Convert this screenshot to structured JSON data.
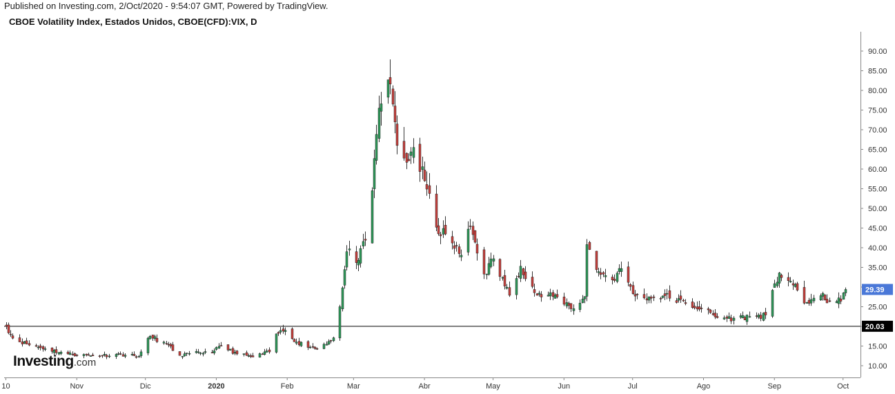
{
  "header": {
    "published": "Published on Investing.com, 2/Oct/2020 - 9:54:07 GMT, Powered by TradingView.",
    "symbol": "CBOE Volatility Index, Estados Unidos, CBOE(CFD):VIX, D"
  },
  "logo": {
    "main": "Investing",
    "suffix": ".com"
  },
  "colors": {
    "up": "#2e9a5a",
    "down": "#c8403c",
    "wick": "#333333",
    "last_label": "#4a78d8",
    "ref_label": "#000000"
  },
  "chart_data": {
    "type": "candlestick",
    "title": "CBOE Volatility Index, Estados Unidos, CBOE(CFD):VIX, D",
    "ylim": [
      8,
      95
    ],
    "y_ticks": [
      10,
      15,
      20,
      25,
      30,
      35,
      40,
      45,
      50,
      55,
      60,
      65,
      70,
      75,
      80,
      85,
      90
    ],
    "y_tick_labels": [
      "10.00",
      "15.00",
      "20.00",
      "25.00",
      "30.00",
      "35.00",
      "40.00",
      "45.00",
      "50.00",
      "55.00",
      "60.00",
      "65.00",
      "70.00",
      "75.00",
      "80.00",
      "85.00",
      "90.00"
    ],
    "x_start": "2019-10-01",
    "x_end": "2020-10-02",
    "x_ticks": [
      {
        "date": "2019-10-01",
        "label": "10",
        "bold": false
      },
      {
        "date": "2019-11-01",
        "label": "Nov",
        "bold": false
      },
      {
        "date": "2019-12-01",
        "label": "Dic",
        "bold": false
      },
      {
        "date": "2020-01-01",
        "label": "2020",
        "bold": true
      },
      {
        "date": "2020-02-01",
        "label": "Feb",
        "bold": false
      },
      {
        "date": "2020-03-01",
        "label": "Mar",
        "bold": false
      },
      {
        "date": "2020-04-01",
        "label": "Abr",
        "bold": false
      },
      {
        "date": "2020-05-01",
        "label": "May",
        "bold": false
      },
      {
        "date": "2020-06-01",
        "label": "Jun",
        "bold": false
      },
      {
        "date": "2020-07-01",
        "label": "Jul",
        "bold": false
      },
      {
        "date": "2020-08-01",
        "label": "Ago",
        "bold": false
      },
      {
        "date": "2020-09-01",
        "label": "Sep",
        "bold": false
      },
      {
        "date": "2020-10-01",
        "label": "Oct",
        "bold": false
      }
    ],
    "reference_line": {
      "value": 20.03,
      "label": "20.03"
    },
    "last_value": {
      "value": 29.39,
      "label": "29.39"
    },
    "anchor_closes": [
      [
        "2019-10-01",
        20.0
      ],
      [
        "2019-10-04",
        17.0
      ],
      [
        "2019-10-10",
        15.5
      ],
      [
        "2019-10-18",
        14.3
      ],
      [
        "2019-10-28",
        13.0
      ],
      [
        "2019-11-08",
        12.5
      ],
      [
        "2019-11-20",
        12.9
      ],
      [
        "2019-11-28",
        12.4
      ],
      [
        "2019-12-03",
        17.5
      ],
      [
        "2019-12-10",
        15.5
      ],
      [
        "2019-12-16",
        12.6
      ],
      [
        "2019-12-31",
        13.8
      ],
      [
        "2020-01-03",
        15.0
      ],
      [
        "2020-01-10",
        13.0
      ],
      [
        "2020-01-17",
        12.2
      ],
      [
        "2020-01-24",
        13.5
      ],
      [
        "2020-01-27",
        18.1
      ],
      [
        "2020-01-31",
        19.0
      ],
      [
        "2020-02-05",
        16.0
      ],
      [
        "2020-02-14",
        14.3
      ],
      [
        "2020-02-21",
        17.1
      ],
      [
        "2020-02-24",
        25.0
      ],
      [
        "2020-02-27",
        39.0
      ],
      [
        "2020-03-03",
        36.8
      ],
      [
        "2020-03-06",
        41.9
      ],
      [
        "2020-03-09",
        54.5
      ],
      [
        "2020-03-12",
        75.5
      ],
      [
        "2020-03-16",
        82.7
      ],
      [
        "2020-03-18",
        76.5
      ],
      [
        "2020-03-20",
        66.0
      ],
      [
        "2020-03-24",
        61.7
      ],
      [
        "2020-03-27",
        65.5
      ],
      [
        "2020-04-01",
        57.0
      ],
      [
        "2020-04-06",
        45.2
      ],
      [
        "2020-04-13",
        41.2
      ],
      [
        "2020-04-17",
        38.1
      ],
      [
        "2020-04-21",
        45.4
      ],
      [
        "2020-04-27",
        33.3
      ],
      [
        "2020-05-01",
        37.2
      ],
      [
        "2020-05-08",
        27.9
      ],
      [
        "2020-05-13",
        35.3
      ],
      [
        "2020-05-20",
        27.9
      ],
      [
        "2020-05-29",
        27.5
      ],
      [
        "2020-06-05",
        24.5
      ],
      [
        "2020-06-10",
        27.6
      ],
      [
        "2020-06-11",
        40.8
      ],
      [
        "2020-06-15",
        34.4
      ],
      [
        "2020-06-22",
        31.8
      ],
      [
        "2020-06-26",
        34.7
      ],
      [
        "2020-07-02",
        27.7
      ],
      [
        "2020-07-10",
        27.3
      ],
      [
        "2020-07-15",
        27.8
      ],
      [
        "2020-07-24",
        25.8
      ],
      [
        "2020-07-31",
        24.5
      ],
      [
        "2020-08-07",
        22.2
      ],
      [
        "2020-08-14",
        22.1
      ],
      [
        "2020-08-21",
        22.5
      ],
      [
        "2020-08-28",
        22.9
      ],
      [
        "2020-09-03",
        33.6
      ],
      [
        "2020-09-08",
        31.5
      ],
      [
        "2020-09-14",
        25.9
      ],
      [
        "2020-09-21",
        27.8
      ],
      [
        "2020-09-25",
        26.4
      ],
      [
        "2020-09-30",
        26.4
      ],
      [
        "2020-10-02",
        29.39
      ]
    ]
  }
}
